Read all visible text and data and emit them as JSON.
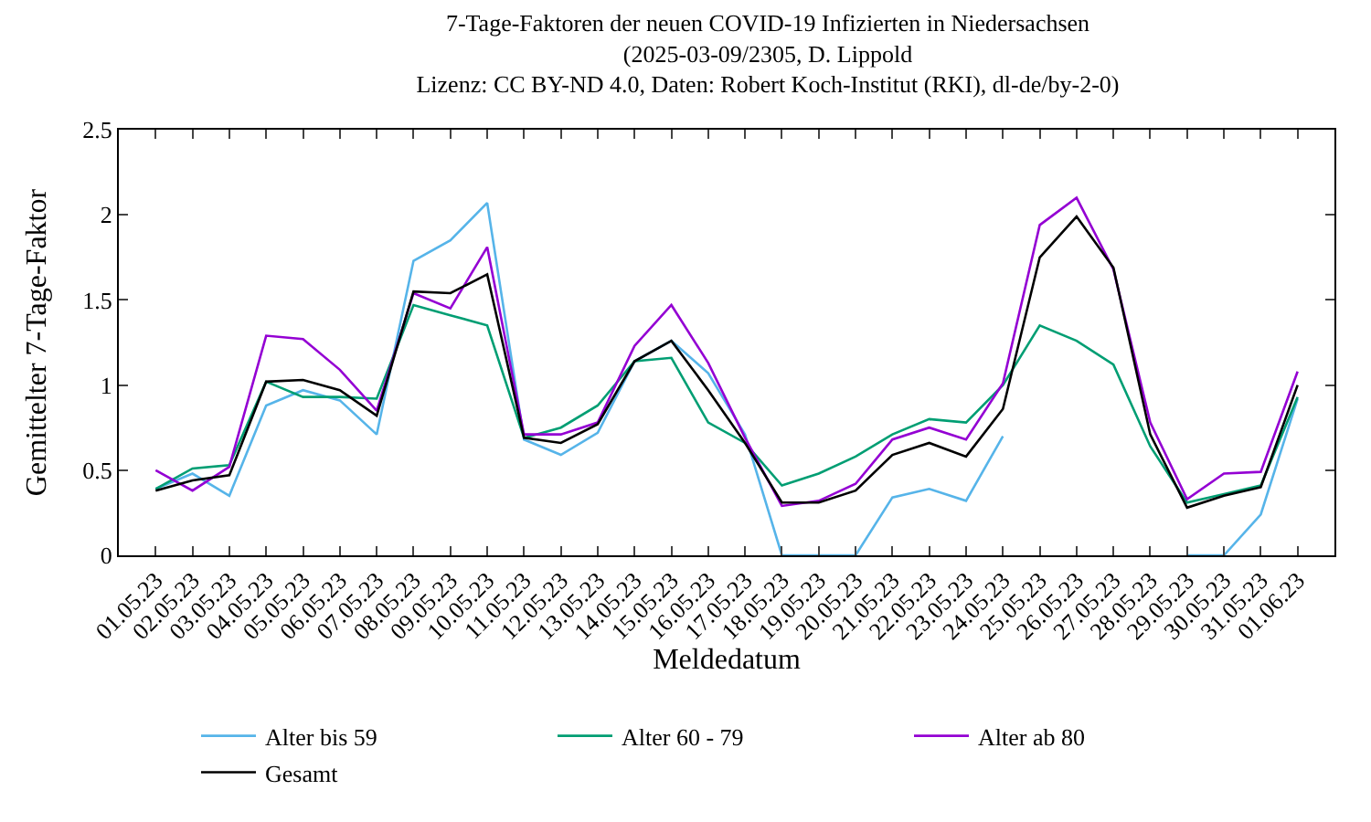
{
  "chart_data": {
    "type": "line",
    "title": "7-Tage-Faktoren der neuen COVID-19 Infizierten in Niedersachsen\n(2025-03-09/2305, D. Lippold\nLizenz: CC BY-ND 4.0, Daten: Robert Koch-Institut (RKI), dl-de/by-2-0)",
    "xlabel": "Meldedatum",
    "ylabel": "Gemittelter 7-Tage-Faktor",
    "categories": [
      "01.05.23",
      "02.05.23",
      "03.05.23",
      "04.05.23",
      "05.05.23",
      "06.05.23",
      "07.05.23",
      "08.05.23",
      "09.05.23",
      "10.05.23",
      "11.05.23",
      "12.05.23",
      "13.05.23",
      "14.05.23",
      "15.05.23",
      "16.05.23",
      "17.05.23",
      "18.05.23",
      "19.05.23",
      "20.05.23",
      "21.05.23",
      "22.05.23",
      "23.05.23",
      "24.05.23",
      "25.05.23",
      "26.05.23",
      "27.05.23",
      "28.05.23",
      "29.05.23",
      "30.05.23",
      "31.05.23",
      "01.06.23"
    ],
    "series": [
      {
        "name": "Alter bis 59",
        "color": "#56b4e9",
        "values": [
          0.39,
          0.48,
          0.35,
          0.88,
          0.97,
          0.91,
          0.71,
          1.73,
          1.85,
          2.07,
          0.68,
          0.59,
          0.72,
          1.14,
          1.26,
          1.07,
          0.71,
          0,
          0,
          0,
          0.34,
          0.39,
          0.32,
          0.7,
          null,
          null,
          null,
          null,
          0,
          0,
          0.24,
          0.92
        ]
      },
      {
        "name": "Alter 60 - 79",
        "color": "#009e73",
        "values": [
          0.39,
          0.51,
          0.53,
          1.02,
          0.93,
          0.93,
          0.92,
          1.47,
          1.41,
          1.35,
          0.69,
          0.75,
          0.88,
          1.14,
          1.16,
          0.78,
          0.66,
          0.41,
          0.48,
          0.58,
          0.71,
          0.8,
          0.78,
          1.0,
          1.35,
          1.26,
          1.12,
          0.64,
          0.31,
          0.36,
          0.41,
          0.93
        ]
      },
      {
        "name": "Alter ab 80",
        "color": "#9400d3",
        "values": [
          0.5,
          0.38,
          0.52,
          1.29,
          1.27,
          1.09,
          0.85,
          1.54,
          1.45,
          1.81,
          0.71,
          0.71,
          0.78,
          1.23,
          1.47,
          1.13,
          0.69,
          0.29,
          0.32,
          0.42,
          0.68,
          0.75,
          0.68,
          1.01,
          1.94,
          2.1,
          1.68,
          0.78,
          0.33,
          0.48,
          0.49,
          1.08
        ]
      },
      {
        "name": "Gesamt",
        "color": "#000000",
        "values": [
          0.38,
          0.44,
          0.47,
          1.02,
          1.03,
          0.97,
          0.82,
          1.55,
          1.54,
          1.65,
          0.69,
          0.66,
          0.77,
          1.14,
          1.26,
          0.97,
          0.66,
          0.31,
          0.31,
          0.38,
          0.59,
          0.66,
          0.58,
          0.86,
          1.75,
          1.99,
          1.69,
          0.71,
          0.28,
          0.35,
          0.4,
          1.0
        ]
      }
    ],
    "ylim": [
      0,
      2.5
    ],
    "yticks": [
      0,
      0.5,
      1,
      1.5,
      2,
      2.5
    ],
    "grid": false,
    "legend": "bottom",
    "marker": "none",
    "line_style": "solid"
  }
}
